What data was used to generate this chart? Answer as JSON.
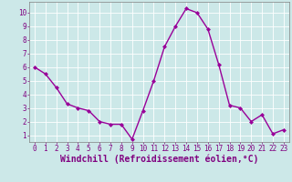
{
  "x": [
    0,
    1,
    2,
    3,
    4,
    5,
    6,
    7,
    8,
    9,
    10,
    11,
    12,
    13,
    14,
    15,
    16,
    17,
    18,
    19,
    20,
    21,
    22,
    23
  ],
  "y": [
    6.0,
    5.5,
    4.5,
    3.3,
    3.0,
    2.8,
    2.0,
    1.8,
    1.8,
    0.7,
    2.8,
    5.0,
    7.5,
    9.0,
    10.3,
    10.0,
    8.8,
    6.2,
    3.2,
    3.0,
    2.0,
    2.5,
    1.1,
    1.4
  ],
  "line_color": "#990099",
  "marker": "D",
  "marker_size": 2.0,
  "line_width": 1.0,
  "bg_color": "#cce8e8",
  "grid_color": "#b0d0d0",
  "xlim": [
    -0.5,
    23.5
  ],
  "ylim": [
    0.5,
    10.8
  ],
  "xticks": [
    0,
    1,
    2,
    3,
    4,
    5,
    6,
    7,
    8,
    9,
    10,
    11,
    12,
    13,
    14,
    15,
    16,
    17,
    18,
    19,
    20,
    21,
    22,
    23
  ],
  "yticks": [
    1,
    2,
    3,
    4,
    5,
    6,
    7,
    8,
    9,
    10
  ],
  "xlabel": "Windchill (Refroidissement éolien,°C)",
  "xlabel_color": "#800080",
  "tick_color": "#800080",
  "tick_fontsize": 5.5,
  "xlabel_fontsize": 7.0,
  "spine_color": "#808080",
  "grid_line_color": "#ffffff"
}
